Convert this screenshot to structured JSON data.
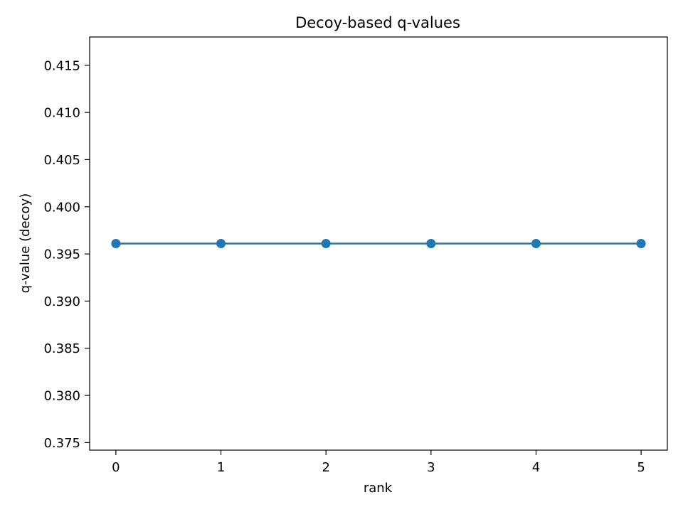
{
  "chart_data": {
    "type": "line",
    "title": "Decoy-based q-values",
    "xlabel": "rank",
    "ylabel": "q-value (decoy)",
    "x": [
      0,
      1,
      2,
      3,
      4,
      5
    ],
    "series": [
      {
        "values": [
          0.3961,
          0.3961,
          0.3961,
          0.3961,
          0.3961,
          0.3961
        ],
        "color": "#1f77b4",
        "marker": "circle"
      }
    ],
    "xlim": [
      -0.25,
      5.25
    ],
    "ylim": [
      0.3742,
      0.418
    ],
    "xticks": [
      0,
      1,
      2,
      3,
      4,
      5
    ],
    "xtick_labels": [
      "0",
      "1",
      "2",
      "3",
      "4",
      "5"
    ],
    "yticks": [
      0.375,
      0.38,
      0.385,
      0.39,
      0.395,
      0.4,
      0.405,
      0.41,
      0.415
    ],
    "ytick_labels": [
      "0.375",
      "0.380",
      "0.385",
      "0.390",
      "0.395",
      "0.400",
      "0.405",
      "0.410",
      "0.415"
    ],
    "grid": false,
    "legend": "none"
  }
}
